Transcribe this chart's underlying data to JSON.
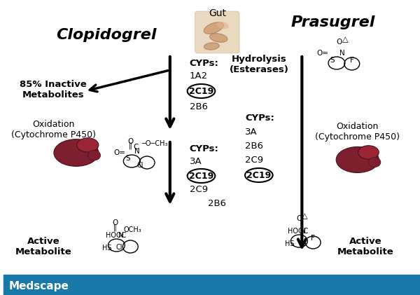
{
  "bg_color": "#ffffff",
  "footer_color": "#1878a8",
  "footer_text": "Medscape",
  "footer_text_color": "#ffffff",
  "title_clopi": "Clopidogrel",
  "title_prasu": "Prasugrel",
  "gut_label": "Gut",
  "inactive_text": "85% Inactive\nMetabolites",
  "oxidation_left_text": "Oxidation\n(Cytochrome P450)",
  "oxidation_right_text": "Oxidation\n(Cytochrome P450)",
  "hydrolysis_text": "Hydrolysis\n(Esterases)",
  "active_metabolite_left": "Active\nMetabolite",
  "active_metabolite_right": "Active\nMetabolite",
  "cyp1_label": "CYPs:",
  "cyp1_1": "1A2",
  "cyp1_circle": "2C19",
  "cyp1_2": "2B6",
  "cyp2_label": "CYPs:",
  "cyp2_1": "3A",
  "cyp2_circle": "2C19",
  "cyp2_2": "2C9",
  "cyp2_3": "2B6",
  "cypr_label": "CYPs:",
  "cypr_1": "3A",
  "cypr_2": "2B6",
  "cypr_3": "2C9",
  "cypr_circle": "2C19",
  "liver_color": "#7d1f2e",
  "liver_lobe_color": "#9b2535"
}
